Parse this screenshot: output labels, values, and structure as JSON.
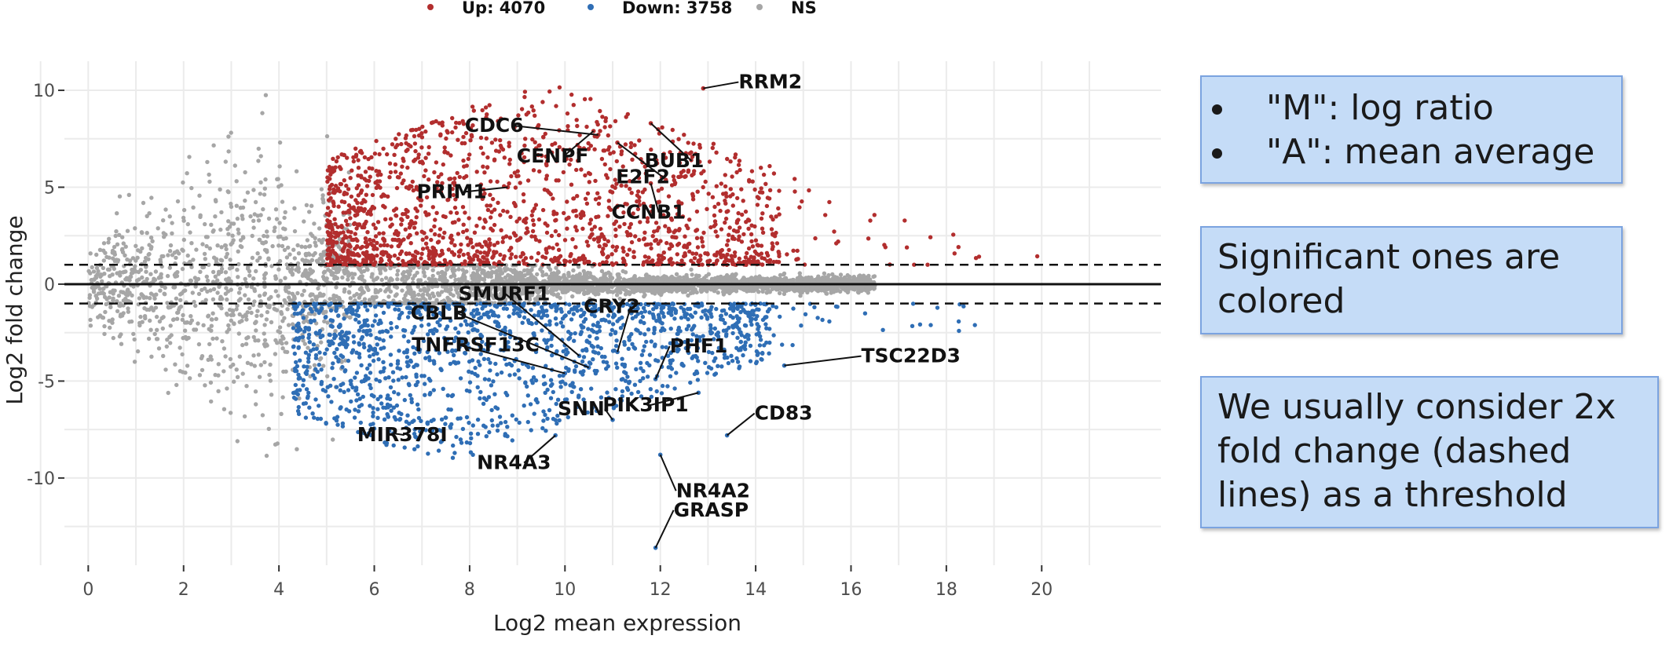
{
  "chart_data": {
    "type": "scatter",
    "title": "",
    "xlabel": "Log2 mean expression",
    "ylabel": "Log2 fold change",
    "xlim": [
      -0.5,
      22.5
    ],
    "ylim": [
      -14.5,
      11.5
    ],
    "x_ticks": [
      0,
      2,
      4,
      6,
      8,
      10,
      12,
      14,
      16,
      18,
      20
    ],
    "y_ticks": [
      10,
      5,
      0,
      -5,
      -10
    ],
    "grid": true,
    "legend_position": "top",
    "thresholds": {
      "fold_change_lines": [
        1,
        -1
      ],
      "zero_line": 0
    },
    "legend": [
      {
        "label": "Up: 4070",
        "color": "#b22e2e"
      },
      {
        "label": "Down: 3758",
        "color": "#2f6eb5"
      },
      {
        "label": "NS",
        "color": "#a6a6a6"
      }
    ],
    "series_counts": {
      "up": 4070,
      "down": 3758
    },
    "labeled_genes": [
      {
        "gene": "CDC6",
        "x": 10.7,
        "y": 7.7,
        "direction": "up"
      },
      {
        "gene": "CENPF",
        "x": 10.6,
        "y": 7.9,
        "direction": "up"
      },
      {
        "gene": "RRM2",
        "x": 12.9,
        "y": 10.1,
        "direction": "up"
      },
      {
        "gene": "BUB1",
        "x": 11.8,
        "y": 8.3,
        "direction": "up"
      },
      {
        "gene": "E2F2",
        "x": 11.1,
        "y": 7.3,
        "direction": "up"
      },
      {
        "gene": "CCNB1",
        "x": 11.8,
        "y": 5.2,
        "direction": "up"
      },
      {
        "gene": "PRIM1",
        "x": 8.8,
        "y": 5.0,
        "direction": "up"
      },
      {
        "gene": "CBLB",
        "x": 10.5,
        "y": -4.3,
        "direction": "down"
      },
      {
        "gene": "SMURF1",
        "x": 10.3,
        "y": -3.7,
        "direction": "down"
      },
      {
        "gene": "CRY2",
        "x": 11.1,
        "y": -3.5,
        "direction": "down"
      },
      {
        "gene": "PHF1",
        "x": 11.9,
        "y": -4.9,
        "direction": "down"
      },
      {
        "gene": "TSC22D3",
        "x": 14.6,
        "y": -4.2,
        "direction": "down"
      },
      {
        "gene": "TNFRSF13C",
        "x": 10.0,
        "y": -4.6,
        "direction": "down"
      },
      {
        "gene": "PIK3IP1",
        "x": 12.8,
        "y": -5.6,
        "direction": "down"
      },
      {
        "gene": "SNN",
        "x": 11.0,
        "y": -7.0,
        "direction": "down"
      },
      {
        "gene": "CD83",
        "x": 13.4,
        "y": -7.8,
        "direction": "down"
      },
      {
        "gene": "MIR378I",
        "x": 6.4,
        "y": -7.7,
        "direction": "down"
      },
      {
        "gene": "NR4A3",
        "x": 9.8,
        "y": -7.8,
        "direction": "down"
      },
      {
        "gene": "NR4A2",
        "x": 12.0,
        "y": -8.8,
        "direction": "down"
      },
      {
        "gene": "GRASP",
        "x": 11.9,
        "y": -13.6,
        "direction": "down"
      }
    ]
  },
  "callouts": {
    "bullets": [
      "\"M\": log ratio",
      "\"A\": mean average"
    ],
    "significant": "Significant ones are colored",
    "threshold": "We usually consider 2x fold change (dashed lines) as a threshold"
  }
}
